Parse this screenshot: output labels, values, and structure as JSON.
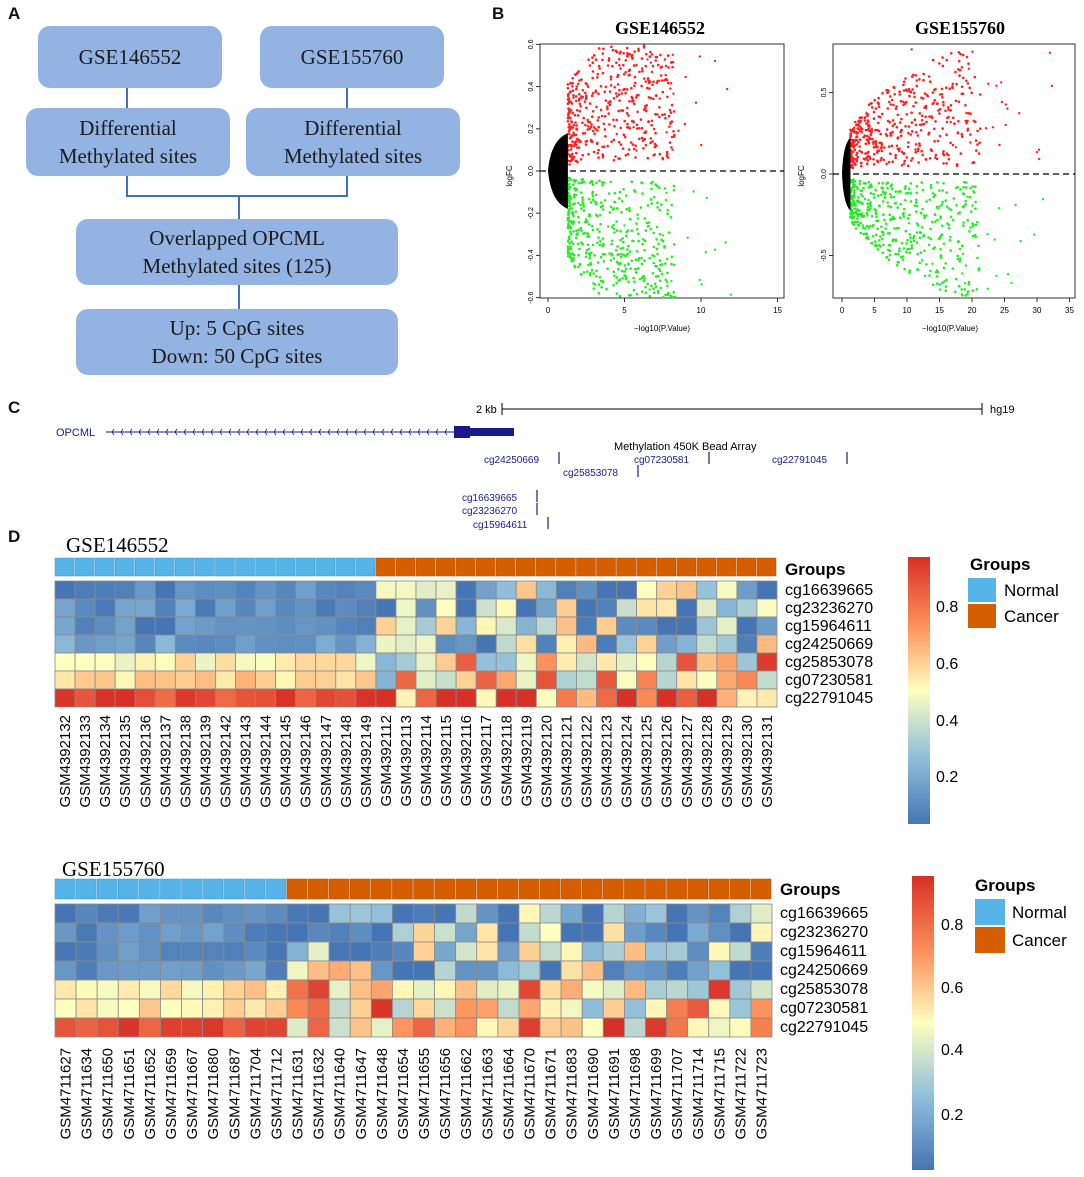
{
  "panel_labels": {
    "a": "A",
    "b": "B",
    "c": "C",
    "d": "D"
  },
  "flowchart": {
    "box1": "GSE146552",
    "box2": "GSE155760",
    "box3": "Differential\nMethylated  sites",
    "box4": "Differential\nMethylated  sites",
    "box5": "Overlapped  OPCML\nMethylated  sites (125)",
    "box6": "Up:  5 CpG  sites\nDown:  50 CpG  sites"
  },
  "volcano": [
    {
      "title": "GSE146552",
      "ylabel": "logFC",
      "xlabel": "−log10(P.Value)",
      "xticks": [
        "0",
        "5",
        "10",
        "15"
      ],
      "yticks": [
        "0.6",
        "0.4",
        "0.2",
        "0.0",
        "-0.2",
        "-0.4",
        "-0.6"
      ]
    },
    {
      "title": "GSE155760",
      "ylabel": "logFC",
      "xlabel": "−log10(P.Value)",
      "xticks": [
        "0",
        "5",
        "10",
        "15",
        "20",
        "25",
        "30",
        "35"
      ],
      "yticks": [
        "0.5",
        "0.0",
        "-0.5"
      ]
    }
  ],
  "colors": {
    "up": "#ff2020",
    "down": "#22ee22",
    "ns": "#000000",
    "normal": "#56b4e9",
    "cancer": "#d55e00",
    "box": "#93b3e2",
    "gene": "#1a1a8c"
  },
  "track": {
    "scale_label": "2 kb",
    "assembly": "hg19",
    "gene": "OPCML",
    "array_label": "Methylation 450K Bead Array",
    "probes": [
      "cg24250669",
      "cg25853078",
      "cg07230581",
      "cg22791045",
      "cg16639665",
      "cg23236270",
      "cg15964611"
    ]
  },
  "heatmaps": [
    {
      "title": "GSE146552",
      "groups_label": "Groups",
      "legend_title": "Groups",
      "legend_items": [
        "Normal",
        "Cancer"
      ],
      "colorbar_ticks": [
        "0.8",
        "0.6",
        "0.4",
        "0.2"
      ],
      "rows": [
        "cg16639665",
        "cg23236270",
        "cg15964611",
        "cg24250669",
        "cg25853078",
        "cg07230581",
        "cg22791045"
      ],
      "samples": [
        "GSM4392132",
        "GSM4392133",
        "GSM4392134",
        "GSM4392135",
        "GSM4392136",
        "GSM4392137",
        "GSM4392138",
        "GSM4392139",
        "GSM4392142",
        "GSM4392143",
        "GSM4392144",
        "GSM4392145",
        "GSM4392146",
        "GSM4392147",
        "GSM4392148",
        "GSM4392149",
        "GSM4392112",
        "GSM4392113",
        "GSM4392114",
        "GSM4392115",
        "GSM4392116",
        "GSM4392117",
        "GSM4392118",
        "GSM4392119",
        "GSM4392120",
        "GSM4392121",
        "GSM4392122",
        "GSM4392123",
        "GSM4392124",
        "GSM4392125",
        "GSM4392126",
        "GSM4392127",
        "GSM4392128",
        "GSM4392129",
        "GSM4392130",
        "GSM4392131"
      ],
      "n_normal": 16
    },
    {
      "title": "GSE155760",
      "groups_label": "Groups",
      "legend_title": "Groups",
      "legend_items": [
        "Normal",
        "Cancer"
      ],
      "colorbar_ticks": [
        "0.8",
        "0.6",
        "0.4",
        "0.2"
      ],
      "rows": [
        "cg16639665",
        "cg23236270",
        "cg15964611",
        "cg24250669",
        "cg25853078",
        "cg07230581",
        "cg22791045"
      ],
      "samples": [
        "GSM4711627",
        "GSM4711634",
        "GSM4711650",
        "GSM4711651",
        "GSM4711652",
        "GSM4711659",
        "GSM4711667",
        "GSM4711680",
        "GSM4711687",
        "GSM4711704",
        "GSM4711712",
        "GSM4711631",
        "GSM4711632",
        "GSM4711640",
        "GSM4711647",
        "GSM4711648",
        "GSM4711654",
        "GSM4711655",
        "GSM4711656",
        "GSM4711662",
        "GSM4711663",
        "GSM4711664",
        "GSM4711670",
        "GSM4711671",
        "GSM4711683",
        "GSM4711690",
        "GSM4711691",
        "GSM4711698",
        "GSM4711699",
        "GSM4711707",
        "GSM4711714",
        "GSM4711715",
        "GSM4711722",
        "GSM4711723"
      ],
      "n_normal": 11
    }
  ]
}
